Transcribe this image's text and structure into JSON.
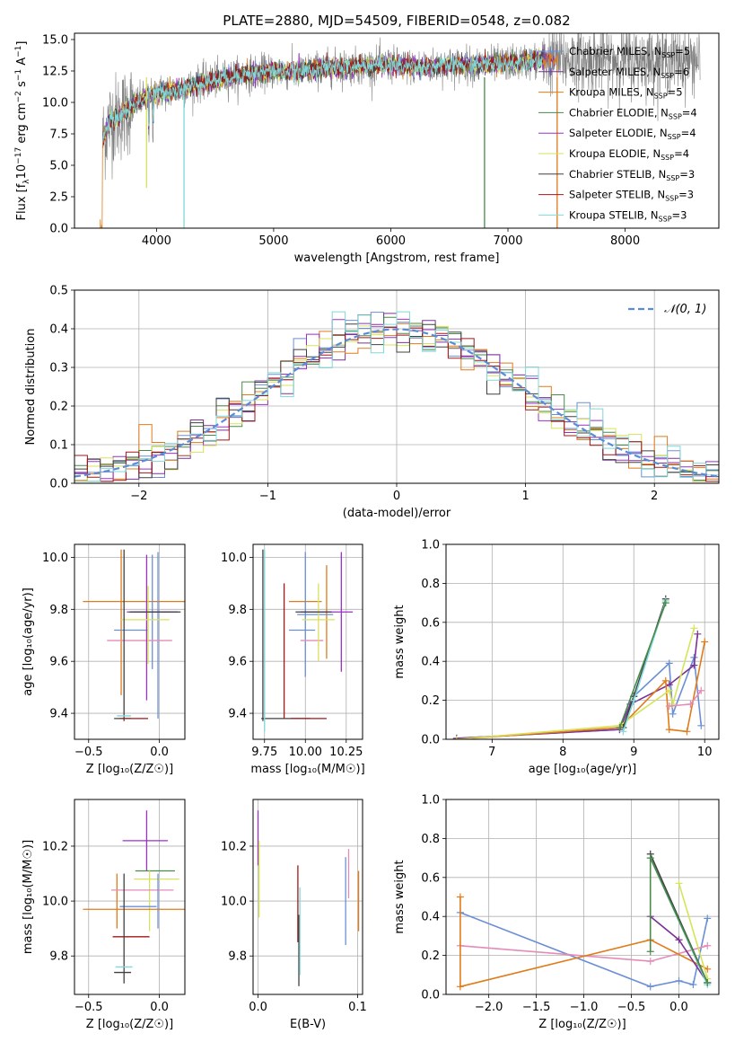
{
  "figure_title": "PLATE=2880, MJD=54509, FIBERID=0548, z=0.082",
  "models": [
    {
      "name": "Chabrier MILES",
      "n": "5",
      "color": "#6b8fd6"
    },
    {
      "name": "Salpeter MILES",
      "n": "6",
      "color": "#7b3294"
    },
    {
      "name": "Kroupa MILES",
      "n": "5",
      "color": "#e07b1a"
    },
    {
      "name": "Chabrier ELODIE",
      "n": "4",
      "color": "#4a8a4a"
    },
    {
      "name": "Salpeter ELODIE",
      "n": "4",
      "color": "#9b30c8"
    },
    {
      "name": "Kroupa ELODIE",
      "n": "4",
      "color": "#d7e35a"
    },
    {
      "name": "Chabrier STELIB",
      "n": "3",
      "color": "#404040"
    },
    {
      "name": "Salpeter STELIB",
      "n": "3",
      "color": "#a01818"
    },
    {
      "name": "Kroupa STELIB",
      "n": "3",
      "color": "#80d8d8"
    }
  ],
  "extra_colors": {
    "pink": "#e58bb8",
    "spectrum_gray": "#808080"
  },
  "chart_data": [
    {
      "id": "spectrum",
      "type": "line",
      "xlabel": "wavelength [Angstrom, rest frame]",
      "ylabel_prefix": "Flux [f",
      "ylabel_sub": "λ",
      "ylabel_mid": "10",
      "ylabel_sup1": "−17",
      "ylabel_rest": " erg cm",
      "ylabel_sup2": "−2",
      "ylabel_rest2": " s",
      "ylabel_sup3": "−1",
      "ylabel_rest3": " A",
      "ylabel_sup4": "−1",
      "ylabel_end": "]",
      "xlim": [
        3300,
        8800
      ],
      "ylim": [
        0,
        15.5
      ],
      "xticks": [
        "4000",
        "5000",
        "6000",
        "7000",
        "8000"
      ],
      "xtick_values": [
        4000,
        5000,
        6000,
        7000,
        8000
      ],
      "yticks": [
        "0.0",
        "2.5",
        "5.0",
        "7.5",
        "10.0",
        "12.5",
        "15.0"
      ],
      "ytick_values": [
        0,
        2.5,
        5,
        7.5,
        10,
        12.5,
        15
      ],
      "continuum": [
        [
          3540,
          7.0
        ],
        [
          3600,
          8.5
        ],
        [
          3700,
          9.0
        ],
        [
          3800,
          9.8
        ],
        [
          3900,
          10.3
        ],
        [
          4000,
          10.8
        ],
        [
          4200,
          11.0
        ],
        [
          4400,
          11.6
        ],
        [
          4600,
          12.0
        ],
        [
          4800,
          12.3
        ],
        [
          5000,
          12.5
        ],
        [
          5200,
          12.4
        ],
        [
          5400,
          12.7
        ],
        [
          5600,
          12.8
        ],
        [
          5800,
          12.9
        ],
        [
          6000,
          13.0
        ],
        [
          6200,
          12.8
        ],
        [
          6400,
          12.9
        ],
        [
          6600,
          13.0
        ],
        [
          6800,
          13.0
        ],
        [
          7000,
          13.1
        ],
        [
          7200,
          13.3
        ],
        [
          7420,
          13.4
        ]
      ],
      "legend_suffix": ", N",
      "legend_sub": "SSP",
      "legend_eq": "="
    },
    {
      "id": "residuals",
      "type": "step",
      "xlabel": "(data-model)/error",
      "ylabel": "Normed distribution",
      "xlim": [
        -2.5,
        2.5
      ],
      "ylim": [
        0,
        0.5
      ],
      "xticks": [
        "−2",
        "−1",
        "0",
        "1",
        "2"
      ],
      "xtick_values": [
        -2,
        -1,
        0,
        1,
        2
      ],
      "yticks": [
        "0.0",
        "0.1",
        "0.2",
        "0.3",
        "0.4",
        "0.5"
      ],
      "ytick_values": [
        0,
        0.1,
        0.2,
        0.3,
        0.4,
        0.5
      ],
      "normal_label": "𝒩(0, 1)",
      "normal_color": "#5b8bd6"
    },
    {
      "id": "age-vs-Z",
      "type": "errorbar",
      "xlabel": "Z [log₁₀(Z/Z☉)]",
      "ylabel": "age  [log₁₀(age/yr)]",
      "xlim": [
        -0.6,
        0.18
      ],
      "ylim": [
        9.3,
        10.05
      ],
      "xticks": [
        "−0.5",
        "0.0"
      ],
      "xtick_values": [
        -0.5,
        0.0
      ],
      "yticks": [
        "9.4",
        "9.6",
        "9.8",
        "10.0"
      ],
      "ytick_values": [
        9.4,
        9.6,
        9.8,
        10.0
      ],
      "points": [
        {
          "x": -0.16,
          "xerr": 0.38,
          "y": 9.83,
          "yerr": 0.0,
          "c": "#e07b1a"
        },
        {
          "x": -0.27,
          "xerr": 0.0,
          "y": 9.75,
          "yerr": 0.28,
          "c": "#e07b1a"
        },
        {
          "x": -0.05,
          "xerr": 0.13,
          "y": 9.79,
          "yerr": 0.22,
          "c": "#6b8fd6"
        },
        {
          "x": -0.2,
          "xerr": 0.12,
          "y": 9.72,
          "yerr": 0.0,
          "c": "#6b8fd6"
        },
        {
          "x": -0.01,
          "xerr": 0.0,
          "y": 9.7,
          "yerr": 0.32,
          "c": "#6b8fd6"
        },
        {
          "x": -0.14,
          "xerr": 0.23,
          "y": 9.68,
          "yerr": 0.0,
          "c": "#e58bb8"
        },
        {
          "x": -0.09,
          "xerr": 0.0,
          "y": 9.73,
          "yerr": 0.28,
          "c": "#9b30c8"
        },
        {
          "x": -0.05,
          "xerr": 0.18,
          "y": 9.79,
          "yerr": 0.0,
          "c": "#9b30c8"
        },
        {
          "x": -0.1,
          "xerr": 0.17,
          "y": 9.76,
          "yerr": 0.0,
          "c": "#d7e35a"
        },
        {
          "x": -0.08,
          "xerr": 0.0,
          "y": 9.74,
          "yerr": 0.15,
          "c": "#d7e35a"
        },
        {
          "x": -0.25,
          "xerr": 0.0,
          "y": 9.7,
          "yerr": 0.33,
          "c": "#404040"
        },
        {
          "x": -0.03,
          "xerr": 0.18,
          "y": 9.79,
          "yerr": 0.0,
          "c": "#404040"
        },
        {
          "x": -0.26,
          "xerr": 0.06,
          "y": 9.38,
          "yerr": 0.0,
          "c": "#404040"
        },
        {
          "x": -0.18,
          "xerr": 0.1,
          "y": 9.38,
          "yerr": 0.0,
          "c": "#a01818"
        },
        {
          "x": -0.25,
          "xerr": 0.05,
          "y": 9.39,
          "yerr": 0.0,
          "c": "#80d8d8"
        }
      ]
    },
    {
      "id": "age-vs-mass",
      "type": "errorbar",
      "xlabel": "mass [log₁₀(M/M☉)]",
      "xlim": [
        9.68,
        10.35
      ],
      "ylim": [
        9.3,
        10.05
      ],
      "xticks": [
        "9.75",
        "10.00",
        "10.25"
      ],
      "xtick_values": [
        9.75,
        10.0,
        10.25
      ],
      "yticks": [
        "9.4",
        "9.6",
        "9.8",
        "10.0"
      ],
      "ytick_values": [
        9.4,
        9.6,
        9.8,
        10.0
      ],
      "points": [
        {
          "x": 10.0,
          "xerr": 0.1,
          "y": 9.83,
          "yerr": 0.0,
          "c": "#e07b1a"
        },
        {
          "x": 10.13,
          "xerr": 0.0,
          "y": 9.79,
          "yerr": 0.18,
          "c": "#e07b1a"
        },
        {
          "x": 10.0,
          "xerr": 0.0,
          "y": 9.78,
          "yerr": 0.24,
          "c": "#6b8fd6"
        },
        {
          "x": 9.98,
          "xerr": 0.08,
          "y": 9.72,
          "yerr": 0.0,
          "c": "#6b8fd6"
        },
        {
          "x": 10.06,
          "xerr": 0.11,
          "y": 9.78,
          "yerr": 0.0,
          "c": "#6b8fd6"
        },
        {
          "x": 10.04,
          "xerr": 0.07,
          "y": 9.68,
          "yerr": 0.0,
          "c": "#e58bb8"
        },
        {
          "x": 10.22,
          "xerr": 0.0,
          "y": 9.79,
          "yerr": 0.23,
          "c": "#9b30c8"
        },
        {
          "x": 10.13,
          "xerr": 0.16,
          "y": 9.79,
          "yerr": 0.0,
          "c": "#9b30c8"
        },
        {
          "x": 10.08,
          "xerr": 0.0,
          "y": 9.75,
          "yerr": 0.15,
          "c": "#d7e35a"
        },
        {
          "x": 10.08,
          "xerr": 0.1,
          "y": 9.76,
          "yerr": 0.0,
          "c": "#d7e35a"
        },
        {
          "x": 9.74,
          "xerr": 0.0,
          "y": 9.7,
          "yerr": 0.33,
          "c": "#404040"
        },
        {
          "x": 10.05,
          "xerr": 0.11,
          "y": 9.79,
          "yerr": 0.0,
          "c": "#404040"
        },
        {
          "x": 9.88,
          "xerr": 0.15,
          "y": 9.38,
          "yerr": 0.0,
          "c": "#404040"
        },
        {
          "x": 9.87,
          "xerr": 0.0,
          "y": 9.64,
          "yerr": 0.26,
          "c": "#a01818"
        },
        {
          "x": 10.02,
          "xerr": 0.11,
          "y": 9.38,
          "yerr": 0.0,
          "c": "#a01818"
        },
        {
          "x": 9.75,
          "xerr": 0.0,
          "y": 9.68,
          "yerr": 0.35,
          "c": "#80d8d8"
        }
      ]
    },
    {
      "id": "weight-vs-age",
      "type": "line",
      "xlabel": "age  [log₁₀(age/yr)]",
      "ylabel": "mass weight",
      "xlim": [
        6.35,
        10.2
      ],
      "ylim": [
        0,
        1
      ],
      "xticks": [
        "7",
        "8",
        "9",
        "10"
      ],
      "xtick_values": [
        7,
        8,
        9,
        10
      ],
      "yticks": [
        "0.0",
        "0.2",
        "0.4",
        "0.6",
        "0.8",
        "1.0"
      ],
      "ytick_values": [
        0,
        0.2,
        0.4,
        0.6,
        0.8,
        1.0
      ],
      "series": [
        {
          "c": "#6b8fd6",
          "pts": [
            [
              6.5,
              0.005
            ],
            [
              8.8,
              0.05
            ],
            [
              9.0,
              0.22
            ],
            [
              9.5,
              0.39
            ],
            [
              9.55,
              0.13
            ],
            [
              9.85,
              0.42
            ],
            [
              9.95,
              0.07
            ]
          ]
        },
        {
          "c": "#7b3294",
          "pts": [
            [
              6.5,
              0.005
            ],
            [
              8.8,
              0.05
            ],
            [
              8.95,
              0.18
            ],
            [
              9.5,
              0.28
            ],
            [
              9.85,
              0.38
            ],
            [
              9.9,
              0.54
            ]
          ]
        },
        {
          "c": "#e07b1a",
          "pts": [
            [
              6.5,
              0.0
            ],
            [
              8.8,
              0.06
            ],
            [
              9.45,
              0.3
            ],
            [
              9.5,
              0.05
            ],
            [
              9.75,
              0.04
            ],
            [
              10.0,
              0.5
            ]
          ]
        },
        {
          "c": "#d7e35a",
          "pts": [
            [
              6.5,
              0.0
            ],
            [
              8.8,
              0.07
            ],
            [
              9.5,
              0.25
            ],
            [
              9.55,
              0.18
            ],
            [
              9.85,
              0.57
            ]
          ]
        },
        {
          "c": "#e58bb8",
          "pts": [
            [
              9.5,
              0.17
            ],
            [
              9.8,
              0.18
            ],
            [
              9.95,
              0.25
            ]
          ]
        },
        {
          "c": "#404040",
          "pts": [
            [
              8.85,
              0.06
            ],
            [
              9.0,
              0.22
            ],
            [
              9.45,
              0.72
            ]
          ]
        },
        {
          "c": "#80d8d8",
          "pts": [
            [
              8.85,
              0.04
            ],
            [
              9.0,
              0.2
            ],
            [
              9.45,
              0.71
            ]
          ]
        },
        {
          "c": "#4a8a4a",
          "pts": [
            [
              8.8,
              0.06
            ],
            [
              9.45,
              0.7
            ]
          ]
        }
      ]
    },
    {
      "id": "mass-vs-Z",
      "type": "errorbar",
      "xlabel": "Z [log₁₀(Z/Z☉)]",
      "ylabel": "mass [log₁₀(M/M☉)]",
      "xlim": [
        -0.6,
        0.18
      ],
      "ylim": [
        9.66,
        10.37
      ],
      "xticks": [
        "−0.5",
        "0.0"
      ],
      "xtick_values": [
        -0.5,
        0.0
      ],
      "yticks": [
        "9.8",
        "10.0",
        "10.2"
      ],
      "ytick_values": [
        9.8,
        10.0,
        10.2
      ],
      "points": [
        {
          "x": -0.1,
          "xerr": 0.16,
          "y": 10.22,
          "yerr": 0.0,
          "c": "#9b30c8"
        },
        {
          "x": -0.09,
          "xerr": 0.0,
          "y": 10.22,
          "yerr": 0.11,
          "c": "#9b30c8"
        },
        {
          "x": -0.03,
          "xerr": 0.14,
          "y": 10.11,
          "yerr": 0.0,
          "c": "#4a8a4a"
        },
        {
          "x": -0.02,
          "xerr": 0.16,
          "y": 10.08,
          "yerr": 0.0,
          "c": "#d7e35a"
        },
        {
          "x": -0.07,
          "xerr": 0.0,
          "y": 10.0,
          "yerr": 0.11,
          "c": "#d7e35a"
        },
        {
          "x": -0.3,
          "xerr": 0.0,
          "y": 10.0,
          "yerr": 0.1,
          "c": "#e07b1a"
        },
        {
          "x": -0.16,
          "xerr": 0.38,
          "y": 9.97,
          "yerr": 0.0,
          "c": "#e07b1a"
        },
        {
          "x": -0.12,
          "xerr": 0.22,
          "y": 10.04,
          "yerr": 0.0,
          "c": "#e58bb8"
        },
        {
          "x": -0.15,
          "xerr": 0.13,
          "y": 9.98,
          "yerr": 0.0,
          "c": "#6b8fd6"
        },
        {
          "x": -0.01,
          "xerr": 0.0,
          "y": 10.0,
          "yerr": 0.1,
          "c": "#6b8fd6"
        },
        {
          "x": -0.2,
          "xerr": 0.13,
          "y": 9.87,
          "yerr": 0.0,
          "c": "#a01818"
        },
        {
          "x": -0.25,
          "xerr": 0.0,
          "y": 9.9,
          "yerr": 0.2,
          "c": "#404040"
        },
        {
          "x": -0.26,
          "xerr": 0.06,
          "y": 9.74,
          "yerr": 0.0,
          "c": "#404040"
        },
        {
          "x": -0.25,
          "xerr": 0.06,
          "y": 9.76,
          "yerr": 0.0,
          "c": "#80d8d8"
        }
      ]
    },
    {
      "id": "mass-vs-ebv",
      "type": "errorbar",
      "xlabel": "E(B-V)",
      "xlim": [
        -0.005,
        0.105
      ],
      "ylim": [
        9.66,
        10.37
      ],
      "xticks": [
        "0.0",
        "0.1"
      ],
      "xtick_values": [
        0.0,
        0.1
      ],
      "yticks": [
        "9.8",
        "10.0",
        "10.2"
      ],
      "ytick_values": [
        9.8,
        10.0,
        10.2
      ],
      "points": [
        {
          "x": 0.0,
          "xerr": 0.0,
          "y": 10.23,
          "yerr": 0.1,
          "c": "#9b30c8"
        },
        {
          "x": 0.001,
          "xerr": 0.0,
          "y": 10.08,
          "yerr": 0.14,
          "c": "#d7e35a"
        },
        {
          "x": 0.04,
          "xerr": 0.0,
          "y": 9.99,
          "yerr": 0.14,
          "c": "#a01818"
        },
        {
          "x": 0.041,
          "xerr": 0.0,
          "y": 9.82,
          "yerr": 0.13,
          "c": "#404040"
        },
        {
          "x": 0.042,
          "xerr": 0.0,
          "y": 9.89,
          "yerr": 0.16,
          "c": "#80d8d8"
        },
        {
          "x": 0.088,
          "xerr": 0.0,
          "y": 10.0,
          "yerr": 0.16,
          "c": "#6b8fd6"
        },
        {
          "x": 0.091,
          "xerr": 0.0,
          "y": 10.1,
          "yerr": 0.09,
          "c": "#e58bb8"
        },
        {
          "x": 0.101,
          "xerr": 0.0,
          "y": 10.0,
          "yerr": 0.11,
          "c": "#e07b1a"
        }
      ]
    },
    {
      "id": "weight-vs-Z",
      "type": "line",
      "xlabel": "Z [log₁₀(Z/Z☉)]",
      "ylabel": "mass weight",
      "xlim": [
        -2.45,
        0.42
      ],
      "ylim": [
        0,
        1
      ],
      "xticks": [
        "−2.0",
        "−1.5",
        "−1.0",
        "−0.5",
        "0.0"
      ],
      "xtick_values": [
        -2.0,
        -1.5,
        -1.0,
        -0.5,
        0.0
      ],
      "yticks": [
        "0.0",
        "0.2",
        "0.4",
        "0.6",
        "0.8",
        "1.0"
      ],
      "ytick_values": [
        0,
        0.2,
        0.4,
        0.6,
        0.8,
        1.0
      ],
      "series": [
        {
          "c": "#6b8fd6",
          "pts": [
            [
              -2.3,
              0.42
            ],
            [
              -0.3,
              0.04
            ],
            [
              0.0,
              0.07
            ],
            [
              0.15,
              0.05
            ],
            [
              0.3,
              0.39
            ]
          ]
        },
        {
          "c": "#e58bb8",
          "pts": [
            [
              -2.3,
              0.25
            ],
            [
              -0.3,
              0.17
            ],
            [
              0.3,
              0.25
            ]
          ]
        },
        {
          "c": "#e07b1a",
          "pts": [
            [
              -2.3,
              0.5
            ],
            [
              -2.3,
              0.04
            ],
            [
              -0.3,
              0.28
            ],
            [
              0.3,
              0.13
            ]
          ]
        },
        {
          "c": "#7b3294",
          "pts": [
            [
              -0.3,
              0.4
            ],
            [
              0.0,
              0.28
            ],
            [
              0.3,
              0.06
            ]
          ]
        },
        {
          "c": "#d7e35a",
          "pts": [
            [
              0.0,
              0.57
            ],
            [
              0.3,
              0.08
            ]
          ]
        },
        {
          "c": "#404040",
          "pts": [
            [
              -0.3,
              0.72
            ],
            [
              0.3,
              0.06
            ]
          ]
        },
        {
          "c": "#80d8d8",
          "pts": [
            [
              -0.3,
              0.7
            ],
            [
              0.3,
              0.05
            ]
          ]
        },
        {
          "c": "#4a8a4a",
          "pts": [
            [
              -0.3,
              0.22
            ],
            [
              -0.3,
              0.7
            ],
            [
              0.3,
              0.06
            ]
          ]
        }
      ]
    }
  ]
}
